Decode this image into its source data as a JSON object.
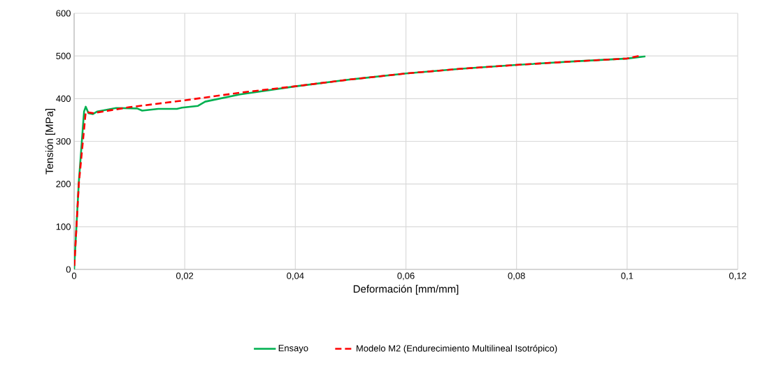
{
  "chart_data": {
    "type": "line",
    "xlabel": "Deformación [mm/mm]",
    "ylabel": "Tensión [MPa]",
    "xlim": [
      0,
      0.12
    ],
    "ylim": [
      0,
      600
    ],
    "xticks": [
      0,
      {
        "value": 0.02,
        "label": "0,02"
      },
      {
        "value": 0.04,
        "label": "0,04"
      },
      {
        "value": 0.06,
        "label": "0,06"
      },
      {
        "value": 0.08,
        "label": "0,08"
      },
      {
        "value": 0.1,
        "label": "0,1"
      },
      {
        "value": 0.12,
        "label": "0,12"
      }
    ],
    "yticks": [
      0,
      100,
      200,
      300,
      400,
      500,
      600
    ],
    "grid": true,
    "legend": "bottom",
    "marker": "none",
    "series": [
      {
        "name": "Ensayo",
        "color": "#00b050",
        "line_style": "solid",
        "x": [
          0,
          0.00085,
          0.0018,
          0.0021,
          0.0026,
          0.0034,
          0.0042,
          0.0076,
          0.0114,
          0.0123,
          0.0152,
          0.0186,
          0.0195,
          0.0224,
          0.0237,
          0.03,
          0.0401,
          0.05,
          0.06,
          0.07,
          0.08,
          0.09,
          0.1,
          0.1033
        ],
        "values": [
          0,
          205,
          370,
          381,
          366,
          364,
          370,
          378,
          377,
          372,
          376,
          376,
          379,
          383,
          393,
          410,
          429,
          445,
          459,
          470,
          479,
          487,
          494,
          499
        ]
      },
      {
        "name": "Modelo M2 (Endurecimiento Multilineal Isotrópico)",
        "color": "#ff0000",
        "line_style": "dashed",
        "x": [
          0,
          0.00085,
          0.0021,
          0.0034,
          0.01,
          0.02,
          0.03,
          0.04,
          0.05,
          0.06,
          0.07,
          0.08,
          0.09,
          0.1,
          0.1021
        ],
        "values": [
          0,
          200,
          369,
          366,
          380,
          396,
          414,
          429,
          445,
          459,
          470,
          479,
          487,
          494,
          500
        ]
      }
    ]
  }
}
